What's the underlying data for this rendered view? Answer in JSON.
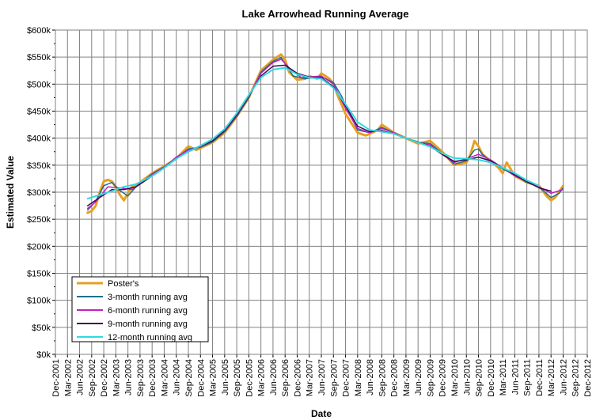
{
  "chart_data": {
    "type": "line",
    "title": "Lake Arrowhead Running Average",
    "xlabel": "Date",
    "ylabel": "Estimated Value",
    "ylim": [
      0,
      600000
    ],
    "grid": true,
    "legend_position": "bottom-left",
    "y_ticks": [
      "$0k",
      "$50k",
      "$100k",
      "$150k",
      "$200k",
      "$250k",
      "$300k",
      "$350k",
      "$400k",
      "$450k",
      "$500k",
      "$550k",
      "$600k"
    ],
    "x_ticks": [
      "Dec-2001",
      "Mar-2002",
      "Jun-2002",
      "Sep-2002",
      "Dec-2002",
      "Mar-2003",
      "Jun-2003",
      "Sep-2003",
      "Dec-2003",
      "Mar-2004",
      "Jun-2004",
      "Sep-2004",
      "Dec-2004",
      "Mar-2005",
      "Jun-2005",
      "Sep-2005",
      "Dec-2005",
      "Mar-2006",
      "Jun-2006",
      "Sep-2006",
      "Dec-2006",
      "Mar-2007",
      "Jun-2007",
      "Sep-2007",
      "Dec-2007",
      "Mar-2008",
      "Jun-2008",
      "Sep-2008",
      "Dec-2008",
      "Mar-2009",
      "Jun-2009",
      "Sep-2009",
      "Dec-2009",
      "Mar-2010",
      "Jun-2010",
      "Sep-2010",
      "Dec-2010",
      "Mar-2011",
      "Jun-2011",
      "Sep-2011",
      "Dec-2011",
      "Mar-2012",
      "Jun-2012",
      "Sep-2012",
      "Dec-2012"
    ],
    "series": [
      {
        "name": "Poster's",
        "color": "#E8A020",
        "width": 3,
        "x": [
          "Aug-2002",
          "Sep-2002",
          "Oct-2002",
          "Nov-2002",
          "Dec-2002",
          "Jan-2003",
          "Feb-2003",
          "Mar-2003",
          "Apr-2003",
          "May-2003",
          "Jun-2003",
          "Jul-2003",
          "Sep-2003",
          "Dec-2003",
          "Mar-2004",
          "Jun-2004",
          "Sep-2004",
          "Nov-2004",
          "Dec-2004",
          "Mar-2005",
          "Jun-2005",
          "Sep-2005",
          "Dec-2005",
          "Mar-2006",
          "Jun-2006",
          "Aug-2006",
          "Sep-2006",
          "Oct-2006",
          "Dec-2006",
          "Feb-2007",
          "Mar-2007",
          "May-2007",
          "Jun-2007",
          "Aug-2007",
          "Sep-2007",
          "Oct-2007",
          "Dec-2007",
          "Mar-2008",
          "May-2008",
          "Jun-2008",
          "Aug-2008",
          "Sep-2008",
          "Oct-2008",
          "Dec-2008",
          "Mar-2009",
          "Jun-2009",
          "Sep-2009",
          "Dec-2009",
          "Mar-2010",
          "Jun-2010",
          "Jul-2010",
          "Aug-2010",
          "Sep-2010",
          "Oct-2010",
          "Dec-2010",
          "Feb-2011",
          "Mar-2011",
          "Apr-2011",
          "Jun-2011",
          "Sep-2011",
          "Dec-2011",
          "Feb-2012",
          "Mar-2012",
          "Apr-2012",
          "Jun-2012"
        ],
        "values": [
          262000,
          265000,
          275000,
          300000,
          320000,
          323000,
          320000,
          310000,
          295000,
          285000,
          298000,
          310000,
          318000,
          335000,
          348000,
          362000,
          385000,
          378000,
          382000,
          392000,
          410000,
          440000,
          475000,
          525000,
          545000,
          555000,
          545000,
          522000,
          508000,
          510000,
          515000,
          510000,
          520000,
          510000,
          500000,
          480000,
          445000,
          410000,
          405000,
          408000,
          415000,
          425000,
          420000,
          410000,
          400000,
          390000,
          395000,
          375000,
          350000,
          355000,
          370000,
          395000,
          385000,
          370000,
          358000,
          345000,
          335000,
          355000,
          330000,
          318000,
          312000,
          292000,
          285000,
          290000,
          312000
        ]
      },
      {
        "name": "3-month running avg",
        "color": "#1F6E8C",
        "width": 1.5,
        "x": [
          "Aug-2002",
          "Oct-2002",
          "Dec-2002",
          "Feb-2003",
          "Apr-2003",
          "Jun-2003",
          "Aug-2003",
          "Dec-2003",
          "Mar-2004",
          "Jun-2004",
          "Sep-2004",
          "Dec-2004",
          "Mar-2005",
          "Jun-2005",
          "Sep-2005",
          "Dec-2005",
          "Mar-2006",
          "Jun-2006",
          "Aug-2006",
          "Sep-2006",
          "Nov-2006",
          "Feb-2007",
          "Jun-2007",
          "Sep-2007",
          "Nov-2007",
          "Jan-2008",
          "Mar-2008",
          "Jun-2008",
          "Sep-2008",
          "Dec-2008",
          "Mar-2009",
          "Jun-2009",
          "Sep-2009",
          "Dec-2009",
          "Mar-2010",
          "Jun-2010",
          "Aug-2010",
          "Sep-2010",
          "Oct-2010",
          "Dec-2010",
          "Mar-2011",
          "Jun-2011",
          "Sep-2011",
          "Dec-2011",
          "Mar-2012",
          "May-2012",
          "Jun-2012"
        ],
        "values": [
          267000,
          283000,
          312000,
          318000,
          303000,
          293000,
          310000,
          334000,
          347000,
          364000,
          380000,
          383000,
          393000,
          412000,
          440000,
          475000,
          522000,
          542000,
          549000,
          538000,
          515000,
          510000,
          514000,
          503000,
          478000,
          445000,
          415000,
          410000,
          420000,
          410000,
          400000,
          392000,
          390000,
          372000,
          352000,
          358000,
          378000,
          380000,
          370000,
          357000,
          343000,
          332000,
          318000,
          310000,
          290000,
          298000,
          308000
        ]
      },
      {
        "name": "6-month running avg",
        "color": "#C020C0",
        "width": 1.5,
        "x": [
          "Aug-2002",
          "Oct-2002",
          "Jan-2003",
          "Apr-2003",
          "Jul-2003",
          "Dec-2003",
          "Mar-2004",
          "Jun-2004",
          "Sep-2004",
          "Dec-2004",
          "Mar-2005",
          "Jun-2005",
          "Sep-2005",
          "Dec-2005",
          "Mar-2006",
          "Jun-2006",
          "Aug-2006",
          "Oct-2006",
          "Jan-2007",
          "Jun-2007",
          "Sep-2007",
          "Dec-2007",
          "Mar-2008",
          "Jun-2008",
          "Sep-2008",
          "Dec-2008",
          "Mar-2009",
          "Jun-2009",
          "Sep-2009",
          "Dec-2009",
          "Mar-2010",
          "Jun-2010",
          "Sep-2010",
          "Dec-2010",
          "Mar-2011",
          "Jun-2011",
          "Sep-2011",
          "Dec-2011",
          "Mar-2012",
          "Jun-2012"
        ],
        "values": [
          270000,
          282000,
          310000,
          308000,
          305000,
          332000,
          346000,
          365000,
          378000,
          384000,
          395000,
          413000,
          442000,
          478000,
          520000,
          540000,
          546000,
          530000,
          512000,
          515000,
          500000,
          455000,
          418000,
          410000,
          418000,
          410000,
          400000,
          392000,
          388000,
          370000,
          355000,
          362000,
          370000,
          360000,
          345000,
          330000,
          320000,
          310000,
          298000,
          305000
        ]
      },
      {
        "name": "9-month running avg",
        "color": "#3A0A4A",
        "width": 1.5,
        "x": [
          "Aug-2002",
          "Nov-2002",
          "Feb-2003",
          "May-2003",
          "Aug-2003",
          "Dec-2003",
          "Mar-2004",
          "Jun-2004",
          "Sep-2004",
          "Dec-2004",
          "Mar-2005",
          "Jun-2005",
          "Sep-2005",
          "Dec-2005",
          "Mar-2006",
          "Jun-2006",
          "Sep-2006",
          "Dec-2006",
          "Mar-2007",
          "Jun-2007",
          "Sep-2007",
          "Dec-2007",
          "Mar-2008",
          "Jun-2008",
          "Sep-2008",
          "Dec-2008",
          "Mar-2009",
          "Jun-2009",
          "Sep-2009",
          "Dec-2009",
          "Mar-2010",
          "Jun-2010",
          "Sep-2010",
          "Dec-2010",
          "Mar-2011",
          "Jun-2011",
          "Sep-2011",
          "Dec-2011",
          "Mar-2012"
        ],
        "values": [
          275000,
          290000,
          305000,
          305000,
          310000,
          330000,
          345000,
          363000,
          375000,
          385000,
          395000,
          414000,
          443000,
          478000,
          515000,
          533000,
          535000,
          520000,
          513000,
          512000,
          495000,
          460000,
          422000,
          412000,
          414000,
          408000,
          400000,
          393000,
          385000,
          370000,
          357000,
          360000,
          365000,
          358000,
          345000,
          332000,
          320000,
          308000,
          302000
        ]
      },
      {
        "name": "12-month running avg",
        "color": "#30D8E0",
        "width": 2,
        "x": [
          "Aug-2002",
          "Nov-2002",
          "Feb-2003",
          "May-2003",
          "Aug-2003",
          "Dec-2003",
          "Mar-2004",
          "Jun-2004",
          "Sep-2004",
          "Dec-2004",
          "Mar-2005",
          "Jun-2005",
          "Sep-2005",
          "Dec-2005",
          "Mar-2006",
          "Jun-2006",
          "Sep-2006",
          "Dec-2006",
          "Mar-2007",
          "Jun-2007",
          "Sep-2007",
          "Dec-2007",
          "Mar-2008",
          "Jun-2008",
          "Sep-2008",
          "Dec-2008",
          "Mar-2009",
          "Jun-2009",
          "Sep-2009",
          "Dec-2009",
          "Mar-2010",
          "Jun-2010",
          "Sep-2010",
          "Dec-2010",
          "Mar-2011",
          "Jun-2011",
          "Sep-2011",
          "Dec-2011"
        ],
        "values": [
          288000,
          295000,
          302000,
          310000,
          315000,
          330000,
          345000,
          362000,
          375000,
          386000,
          398000,
          417000,
          446000,
          480000,
          512000,
          527000,
          530000,
          518000,
          512000,
          510000,
          493000,
          463000,
          430000,
          415000,
          412000,
          408000,
          400000,
          392000,
          384000,
          372000,
          363000,
          362000,
          360000,
          355000,
          345000,
          335000,
          322000,
          312000
        ]
      }
    ]
  }
}
